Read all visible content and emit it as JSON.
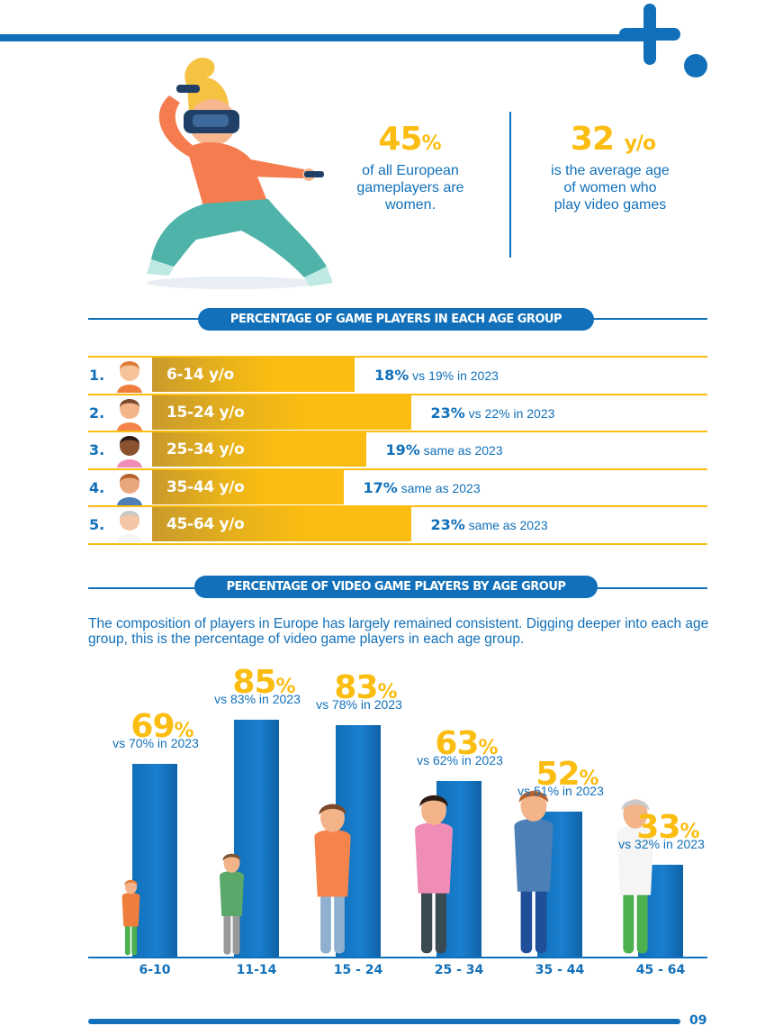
{
  "colors": {
    "accent_blue": "#1170b9",
    "accent_yellow": "#fbbd11",
    "bar_gold": "#e8b21a"
  },
  "stats": [
    {
      "value": "45",
      "unit": "%",
      "text": "of all European gameplayers are women."
    },
    {
      "value": "32",
      "unit": "y/o",
      "text": "is the average age of women who play video games"
    }
  ],
  "section1": {
    "title": "PERCENTAGE OF GAME PLAYERS IN EACH AGE GROUP",
    "rows": [
      {
        "num": "1.",
        "label": "6-14 y/o",
        "value": 18,
        "value_text": "18%",
        "comparison": "vs 19% in 2023",
        "icon": "child-avatar-icon"
      },
      {
        "num": "2.",
        "label": "15-24 y/o",
        "value": 23,
        "value_text": "23%",
        "comparison": "vs 22% in 2023",
        "icon": "young-woman-avatar-icon"
      },
      {
        "num": "3.",
        "label": "25-34 y/o",
        "value": 19,
        "value_text": "19%",
        "comparison": "same as 2023",
        "icon": "woman-avatar-icon"
      },
      {
        "num": "4.",
        "label": "35-44 y/o",
        "value": 17,
        "value_text": "17%",
        "comparison": "same as 2023",
        "icon": "man-avatar-icon"
      },
      {
        "num": "5.",
        "label": "45-64 y/o",
        "value": 23,
        "value_text": "23%",
        "comparison": "same as 2023",
        "icon": "senior-woman-avatar-icon"
      }
    ]
  },
  "section2": {
    "title": "PERCENTAGE OF VIDEO GAME PLAYERS BY AGE GROUP",
    "description": "The composition of players in Europe has largely remained consistent. Digging deeper into each age group, this is the percentage of video game players in each age group."
  },
  "chart_data": {
    "type": "bar",
    "categories": [
      "6-10",
      "11-14",
      "15 - 24",
      "25 - 34",
      "35 - 44",
      "45 - 64"
    ],
    "values": [
      69,
      85,
      83,
      63,
      52,
      33
    ],
    "value_labels": [
      "69",
      "85",
      "83",
      "63",
      "52",
      "33"
    ],
    "unit": "%",
    "comparisons": [
      "vs 70% in 2023",
      "vs 83% in 2023",
      "vs 78% in 2023",
      "vs 62% in 2023",
      "vs 51% in 2023",
      "vs 32% in 2023"
    ],
    "ylim": [
      0,
      100
    ],
    "grid": false,
    "bar_color": "#1170b9"
  },
  "page_number": "09"
}
